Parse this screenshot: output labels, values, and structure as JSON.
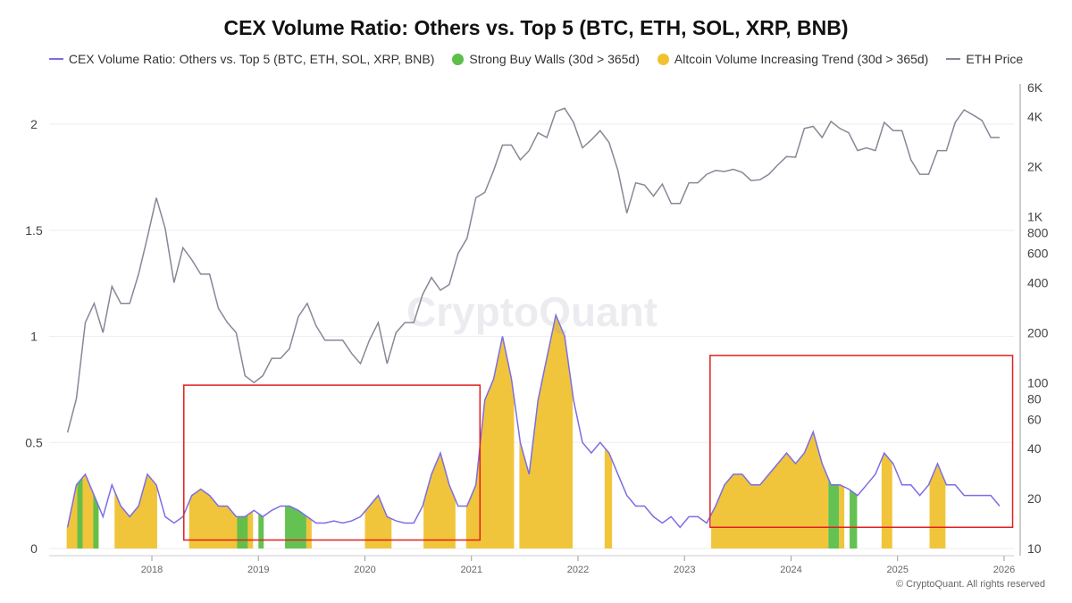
{
  "chart_data": {
    "type": "line",
    "title": "CEX Volume Ratio: Others vs. Top 5 (BTC, ETH, SOL, XRP, BNB)",
    "legend": [
      {
        "name": "CEX Volume Ratio: Others vs. Top 5 (BTC, ETH, SOL, XRP, BNB)",
        "color": "#7b6ee6",
        "kind": "line"
      },
      {
        "name": "Strong Buy Walls (30d > 365d)",
        "color": "#5cbf4a",
        "kind": "dot"
      },
      {
        "name": "Altcoin Volume Increasing Trend (30d > 365d)",
        "color": "#f0c230",
        "kind": "dot"
      },
      {
        "name": "ETH Price",
        "color": "#8a8696",
        "kind": "line"
      }
    ],
    "legend_position": "top",
    "x_ticks": [
      "2018",
      "2019",
      "2020",
      "2021",
      "2022",
      "2023",
      "2024",
      "2025",
      "2026"
    ],
    "x_range": [
      2017.0,
      2026.1
    ],
    "y_left": {
      "range": [
        0,
        2.18
      ],
      "ticks": [
        "0",
        "0.5",
        "1",
        "1.5",
        "2"
      ],
      "tick_values": [
        0,
        0.5,
        1,
        1.5,
        2
      ]
    },
    "y_right": {
      "scale": "log",
      "range": [
        10,
        6000
      ],
      "ticks": [
        "10",
        "20",
        "40",
        "60",
        "80",
        "100",
        "200",
        "400",
        "600",
        "800",
        "1K",
        "2K",
        "4K",
        "6K"
      ],
      "tick_values": [
        10,
        20,
        40,
        60,
        80,
        100,
        200,
        400,
        600,
        800,
        1000,
        2000,
        4000,
        6000
      ]
    },
    "grid": true,
    "start": "2017-03",
    "eth_price_monthly": [
      50,
      80,
      230,
      300,
      200,
      380,
      300,
      300,
      450,
      750,
      1300,
      850,
      400,
      650,
      550,
      450,
      450,
      280,
      230,
      200,
      110,
      100,
      110,
      140,
      140,
      160,
      250,
      300,
      220,
      180,
      180,
      180,
      150,
      130,
      180,
      230,
      130,
      200,
      230,
      230,
      340,
      430,
      360,
      390,
      600,
      740,
      1300,
      1400,
      1900,
      2700,
      2700,
      2200,
      2500,
      3200,
      3000,
      4300,
      4500,
      3700,
      2600,
      2900,
      3300,
      2800,
      1900,
      1050,
      1600,
      1550,
      1330,
      1570,
      1200,
      1200,
      1600,
      1600,
      1800,
      1900,
      1870,
      1930,
      1850,
      1650,
      1670,
      1800,
      2050,
      2300,
      2280,
      3400,
      3500,
      3000,
      3750,
      3400,
      3200,
      2500,
      2600,
      2500,
      3700,
      3300,
      3300,
      2200,
      1800,
      1800,
      2500,
      2500,
      3700,
      4400,
      4100,
      3800,
      3000,
      3000
    ],
    "ratio_monthly": [
      0.1,
      0.3,
      0.35,
      0.25,
      0.15,
      0.3,
      0.2,
      0.15,
      0.2,
      0.35,
      0.3,
      0.15,
      0.12,
      0.15,
      0.25,
      0.28,
      0.25,
      0.2,
      0.2,
      0.15,
      0.15,
      0.18,
      0.15,
      0.18,
      0.2,
      0.2,
      0.18,
      0.15,
      0.12,
      0.12,
      0.13,
      0.12,
      0.13,
      0.15,
      0.2,
      0.25,
      0.15,
      0.13,
      0.12,
      0.12,
      0.2,
      0.35,
      0.45,
      0.3,
      0.2,
      0.2,
      0.3,
      0.7,
      0.8,
      1.0,
      0.8,
      0.5,
      0.35,
      0.7,
      0.9,
      1.1,
      1.0,
      0.7,
      0.5,
      0.45,
      0.5,
      0.45,
      0.35,
      0.25,
      0.2,
      0.2,
      0.15,
      0.12,
      0.15,
      0.1,
      0.15,
      0.15,
      0.12,
      0.2,
      0.3,
      0.35,
      0.35,
      0.3,
      0.3,
      0.35,
      0.4,
      0.45,
      0.4,
      0.45,
      0.55,
      0.4,
      0.3,
      0.3,
      0.28,
      0.25,
      0.3,
      0.35,
      0.45,
      0.4,
      0.3,
      0.3,
      0.25,
      0.3,
      0.4,
      0.3,
      0.3,
      0.25,
      0.25,
      0.25,
      0.25,
      0.2
    ],
    "altcoin_trend_periods": [
      [
        2017.2,
        2017.5
      ],
      [
        2017.65,
        2018.05
      ],
      [
        2018.35,
        2018.95
      ],
      [
        2019.45,
        2019.5
      ],
      [
        2020.0,
        2020.25
      ],
      [
        2020.55,
        2020.85
      ],
      [
        2020.95,
        2021.4
      ],
      [
        2021.45,
        2021.95
      ],
      [
        2022.25,
        2022.32
      ],
      [
        2023.25,
        2024.35
      ],
      [
        2024.45,
        2024.5
      ],
      [
        2024.85,
        2024.95
      ],
      [
        2025.3,
        2025.45
      ]
    ],
    "strong_buy_wall_periods": [
      [
        2017.3,
        2017.35
      ],
      [
        2017.45,
        2017.5
      ],
      [
        2018.8,
        2018.9
      ],
      [
        2019.0,
        2019.05
      ],
      [
        2019.25,
        2019.45
      ],
      [
        2024.35,
        2024.45
      ],
      [
        2024.55,
        2024.62
      ]
    ],
    "highlight_boxes": [
      {
        "x": [
          2018.3,
          2021.08
        ],
        "y": [
          0.04,
          0.77
        ],
        "color": "#e02020"
      },
      {
        "x": [
          2023.24,
          2026.08
        ],
        "y": [
          0.1,
          0.91
        ],
        "color": "#e02020"
      }
    ]
  },
  "watermark": "CryptoQuant",
  "copyright": "© CryptoQuant. All rights reserved"
}
